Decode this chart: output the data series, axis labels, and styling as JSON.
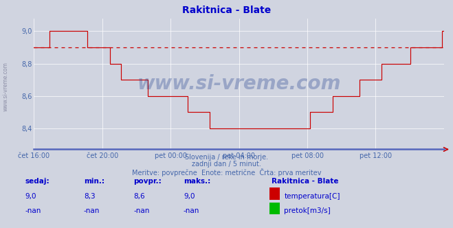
{
  "title": "Rakitnica - Blate",
  "title_color": "#0000cc",
  "bg_color": "#d0d4e0",
  "plot_bg_color": "#d0d4e0",
  "grid_color": "#ffffff",
  "tick_color": "#4466aa",
  "line_color": "#cc0000",
  "dashed_line_value": 8.9,
  "dashed_line_color": "#cc0000",
  "ylim": [
    8.27,
    9.08
  ],
  "yticks": [
    8.4,
    8.6,
    8.8,
    9.0
  ],
  "watermark_text": "www.si-vreme.com",
  "watermark_color": "#1a3a8a",
  "watermark_alpha": 0.3,
  "sub_text1": "Slovenija / reke in morje.",
  "sub_text2": "zadnji dan / 5 minut.",
  "sub_text3": "Meritve: povprečne  Enote: metrične  Črta: prva meritev",
  "sub_text_color": "#4466aa",
  "footer_title": "Rakitnica - Blate",
  "footer_cols": [
    "sedaj:",
    "min.:",
    "povpr.:",
    "maks.:"
  ],
  "footer_row1": [
    "9,0",
    "8,3",
    "8,6",
    "9,0"
  ],
  "footer_row2": [
    "-nan",
    "-nan",
    "-nan",
    "-nan"
  ],
  "footer_color": "#0000cc",
  "legend_items": [
    "temperatura[C]",
    "pretok[m3/s]"
  ],
  "legend_colors": [
    "#cc0000",
    "#00bb00"
  ],
  "x_tick_labels": [
    "čet 16:00",
    "čet 20:00",
    "pet 00:00",
    "pet 04:00",
    "pet 08:00",
    "pet 12:00"
  ],
  "x_tick_positions": [
    0.0,
    0.1667,
    0.3333,
    0.5,
    0.6667,
    0.8333
  ],
  "temperature_data": [
    8.9,
    8.9,
    8.9,
    8.9,
    8.9,
    8.9,
    8.9,
    9.0,
    9.0,
    9.0,
    9.0,
    9.0,
    9.0,
    9.0,
    9.0,
    9.0,
    9.0,
    9.0,
    9.0,
    9.0,
    9.0,
    9.0,
    9.0,
    9.0,
    8.9,
    8.9,
    8.9,
    8.9,
    8.9,
    8.9,
    8.9,
    8.9,
    8.9,
    8.9,
    8.8,
    8.8,
    8.8,
    8.8,
    8.8,
    8.7,
    8.7,
    8.7,
    8.7,
    8.7,
    8.7,
    8.7,
    8.7,
    8.7,
    8.7,
    8.7,
    8.7,
    8.6,
    8.6,
    8.6,
    8.6,
    8.6,
    8.6,
    8.6,
    8.6,
    8.6,
    8.6,
    8.6,
    8.6,
    8.6,
    8.6,
    8.6,
    8.6,
    8.6,
    8.6,
    8.5,
    8.5,
    8.5,
    8.5,
    8.5,
    8.5,
    8.5,
    8.5,
    8.5,
    8.5,
    8.4,
    8.4,
    8.4,
    8.4,
    8.4,
    8.4,
    8.4,
    8.4,
    8.4,
    8.4,
    8.4,
    8.4,
    8.4,
    8.4,
    8.4,
    8.4,
    8.4,
    8.4,
    8.4,
    8.4,
    8.4,
    8.4,
    8.4,
    8.4,
    8.4,
    8.4,
    8.4,
    8.4,
    8.4,
    8.4,
    8.4,
    8.4,
    8.4,
    8.4,
    8.4,
    8.4,
    8.4,
    8.4,
    8.4,
    8.4,
    8.4,
    8.4,
    8.4,
    8.4,
    8.4,
    8.5,
    8.5,
    8.5,
    8.5,
    8.5,
    8.5,
    8.5,
    8.5,
    8.5,
    8.5,
    8.6,
    8.6,
    8.6,
    8.6,
    8.6,
    8.6,
    8.6,
    8.6,
    8.6,
    8.6,
    8.6,
    8.6,
    8.7,
    8.7,
    8.7,
    8.7,
    8.7,
    8.7,
    8.7,
    8.7,
    8.7,
    8.7,
    8.8,
    8.8,
    8.8,
    8.8,
    8.8,
    8.8,
    8.8,
    8.8,
    8.8,
    8.8,
    8.8,
    8.8,
    8.8,
    8.9,
    8.9,
    8.9,
    8.9,
    8.9,
    8.9,
    8.9,
    8.9,
    8.9,
    8.9,
    8.9,
    8.9,
    8.9,
    8.9,
    9.0,
    9.0
  ]
}
